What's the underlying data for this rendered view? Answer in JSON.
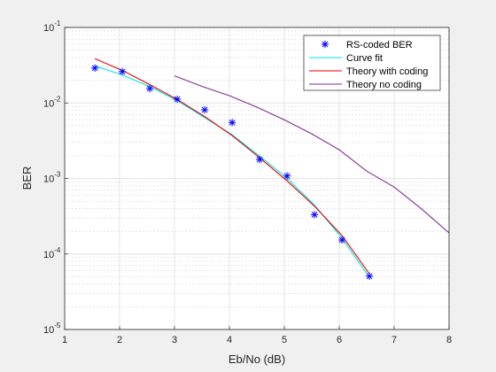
{
  "chart_data": {
    "type": "line",
    "xlabel": "Eb/No (dB)",
    "ylabel": "BER",
    "xlim": [
      1,
      8
    ],
    "ylim": [
      1e-05,
      0.1
    ],
    "yscale": "log",
    "grid": true,
    "minor_grid": true,
    "legend_position": "top-right",
    "x_ticks": [
      "1",
      "2",
      "3",
      "4",
      "5",
      "6",
      "7",
      "8"
    ],
    "y_ticks": [
      {
        "base": "10",
        "exp": "-5"
      },
      {
        "base": "10",
        "exp": "-4"
      },
      {
        "base": "10",
        "exp": "-3"
      },
      {
        "base": "10",
        "exp": "-2"
      },
      {
        "base": "10",
        "exp": "-1"
      }
    ],
    "series": [
      {
        "name": "RS-coded BER",
        "kind": "markers",
        "marker": "*",
        "color": "#0000ff",
        "x": [
          1.55,
          2.05,
          2.55,
          3.05,
          3.55,
          4.05,
          4.55,
          5.05,
          5.55,
          6.05,
          6.55
        ],
        "y": [
          0.029,
          0.026,
          0.0155,
          0.0112,
          0.0081,
          0.0055,
          0.00178,
          0.00108,
          0.000332,
          0.000153,
          5.08e-05
        ]
      },
      {
        "name": "Curve fit",
        "kind": "line",
        "color": "#00e6e6",
        "x": [
          1.55,
          2.05,
          2.55,
          3.05,
          3.55,
          4.05,
          4.55,
          5.05,
          5.55,
          6.05,
          6.55
        ],
        "y": [
          0.031,
          0.0235,
          0.0165,
          0.0107,
          0.0064,
          0.0038,
          0.00198,
          0.00101,
          0.000445,
          0.000162,
          4.9e-05
        ]
      },
      {
        "name": "Theory with coding",
        "kind": "line",
        "color": "#e60000",
        "x": [
          1.55,
          2.05,
          2.55,
          3.05,
          3.55,
          4.05,
          4.55,
          5.05,
          5.55,
          6.05,
          6.55
        ],
        "y": [
          0.0385,
          0.027,
          0.0175,
          0.0111,
          0.0066,
          0.0037,
          0.00188,
          0.00093,
          0.000428,
          0.000176,
          5.45e-05
        ]
      },
      {
        "name": "Theory no coding",
        "kind": "line",
        "color": "#7e2f8e",
        "x": [
          3.0,
          3.5,
          4.0,
          4.5,
          5.0,
          5.5,
          6.0,
          6.5,
          7.0,
          7.5,
          8.0
        ],
        "y": [
          0.0229,
          0.0166,
          0.0125,
          0.0088,
          0.006,
          0.0039,
          0.0024,
          0.00125,
          0.00077,
          0.000395,
          0.00019
        ]
      }
    ]
  }
}
